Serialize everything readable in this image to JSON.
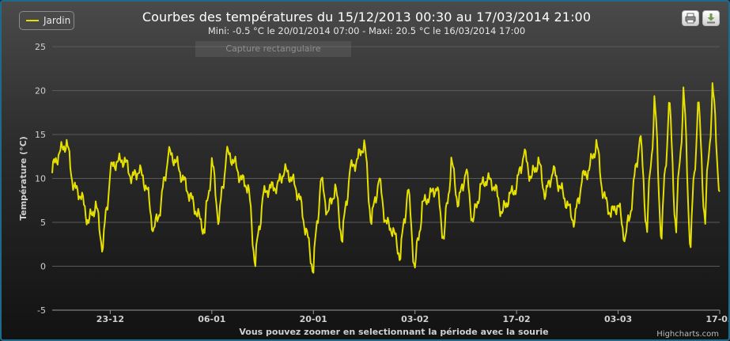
{
  "chart_data": {
    "type": "line",
    "title": "Courbes des températures du 15/12/2013 00:30 au 17/03/2014 21:00",
    "subtitle": "Mini: -0.5 °C le 20/01/2014 07:00 - Maxi: 20.5 °C le 16/03/2014 17:00",
    "xlabel": "Vous pouvez zoomer en selectionnant la période avec la sourie",
    "ylabel": "Température (°C)",
    "ylim": [
      -5,
      25
    ],
    "yticks": [
      "-5",
      "0",
      "5",
      "10",
      "15",
      "20",
      "25"
    ],
    "xlim": [
      "15/12/2013",
      "17/03/2014"
    ],
    "xticks": [
      {
        "date": "23/12/2013",
        "label": "23-12"
      },
      {
        "date": "06/01/2014",
        "label": "06-01"
      },
      {
        "date": "20/01/2014",
        "label": "20-01"
      },
      {
        "date": "03/02/2014",
        "label": "03-02"
      },
      {
        "date": "17/02/2014",
        "label": "17-02"
      },
      {
        "date": "03/03/2014",
        "label": "03-03"
      },
      {
        "date": "17/03/2014",
        "label": "17-03"
      }
    ],
    "grid": true,
    "legend_position": "top-left",
    "series": [
      {
        "name": "Jardin",
        "color": "#e5e000",
        "x": [
          "15/12",
          "16/12",
          "17/12",
          "18/12",
          "19/12",
          "20/12",
          "21/12",
          "22/12",
          "23/12",
          "24/12",
          "25/12",
          "26/12",
          "27/12",
          "28/12",
          "29/12",
          "30/12",
          "31/12",
          "01/01",
          "02/01",
          "03/01",
          "04/01",
          "05/01",
          "06/01",
          "07/01",
          "08/01",
          "09/01",
          "10/01",
          "11/01",
          "12/01",
          "13/01",
          "14/01",
          "15/01",
          "16/01",
          "17/01",
          "18/01",
          "19/01",
          "20/01",
          "21/01",
          "22/01",
          "23/01",
          "24/01",
          "25/01",
          "26/01",
          "27/01",
          "28/01",
          "29/01",
          "30/01",
          "31/01",
          "01/02",
          "02/02",
          "03/02",
          "04/02",
          "05/02",
          "06/02",
          "07/02",
          "08/02",
          "09/02",
          "10/02",
          "11/02",
          "12/02",
          "13/02",
          "14/02",
          "15/02",
          "16/02",
          "17/02",
          "18/02",
          "19/02",
          "20/02",
          "21/02",
          "22/02",
          "23/02",
          "24/02",
          "25/02",
          "26/02",
          "27/02",
          "28/02",
          "01/03",
          "02/03",
          "03/03",
          "04/03",
          "05/03",
          "06/03",
          "07/03",
          "08/03",
          "09/03",
          "10/03",
          "11/03",
          "12/03",
          "13/03",
          "14/03",
          "15/03",
          "16/03",
          "17/03"
        ],
        "values": [
          11,
          13,
          14,
          9,
          8,
          5,
          7,
          2,
          11,
          12,
          12,
          10,
          11,
          9,
          4,
          7,
          13,
          12,
          10,
          8,
          6,
          4,
          12,
          5,
          13,
          12,
          10,
          9,
          0.3,
          8,
          9,
          9,
          11,
          10,
          8,
          4,
          -0.5,
          10,
          6,
          9,
          3,
          11,
          12,
          14,
          5,
          10,
          5,
          4,
          1,
          9,
          -0.3,
          7,
          8,
          9,
          3,
          12,
          7,
          11,
          5,
          9,
          10,
          9,
          6,
          8,
          9,
          13,
          10,
          12,
          8,
          11,
          9,
          7,
          5,
          10,
          11,
          14,
          8,
          6,
          7,
          3,
          8,
          15,
          4,
          19,
          3,
          19,
          4,
          20,
          2,
          19,
          5,
          20.5,
          8.5
        ]
      }
    ]
  },
  "legend": {
    "label": "Jardin"
  },
  "overlay": {
    "ghost_tooltip": "Capture rectangulaire"
  },
  "toolbar": {
    "print_icon": "printer-icon",
    "export_icon": "download-icon"
  },
  "credits": "Highcharts.com"
}
